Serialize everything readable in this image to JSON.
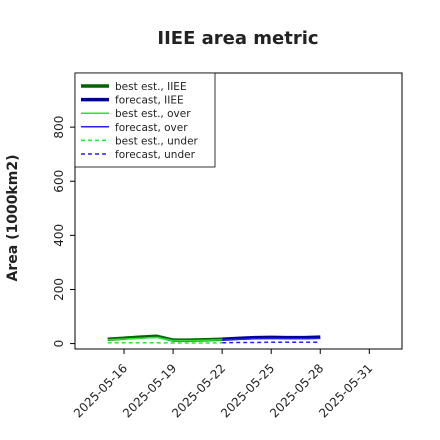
{
  "chart_data": {
    "type": "line",
    "title": "IIEE area metric",
    "xlabel": "",
    "ylabel": "Area (1000km2)",
    "ylim": [
      -20,
      1000
    ],
    "yticks": [
      0,
      200,
      400,
      600,
      800
    ],
    "xlim": [
      "2025-05-13",
      "2025-06-02"
    ],
    "xticks": [
      {
        "date": "2025-05-16",
        "label": "2025-05-16",
        "color": "#222222"
      },
      {
        "date": "2025-05-19",
        "label": "2025-05-19",
        "color": "#222222"
      },
      {
        "date": "2025-05-22",
        "label": "2025-05-22",
        "color": "#2ca02c"
      },
      {
        "date": "2025-05-25",
        "label": "2025-05-25",
        "color": "#222222"
      },
      {
        "date": "2025-05-28",
        "label": "2025-05-28",
        "color": "#222222"
      },
      {
        "date": "2025-05-31",
        "label": "2025-05-31",
        "color": "#222222"
      }
    ],
    "legend_position": "top-left",
    "grid": false,
    "series": [
      {
        "name": "best est., IIEE",
        "color": "#006400",
        "width": 3.5,
        "dash": "",
        "x": [
          "2025-05-15",
          "2025-05-16",
          "2025-05-17",
          "2025-05-18",
          "2025-05-19",
          "2025-05-20",
          "2025-05-21",
          "2025-05-22"
        ],
        "y": [
          16,
          20,
          24,
          27,
          13,
          13,
          14,
          16
        ]
      },
      {
        "name": "forecast, IIEE",
        "color": "#00008b",
        "width": 3.5,
        "dash": "",
        "x": [
          "2025-05-22",
          "2025-05-23",
          "2025-05-24",
          "2025-05-25",
          "2025-05-26",
          "2025-05-27",
          "2025-05-28"
        ],
        "y": [
          16,
          19,
          22,
          23,
          22,
          22,
          24
        ]
      },
      {
        "name": "best est., over",
        "color": "#33dd33",
        "width": 1.5,
        "dash": "",
        "x": [
          "2025-05-15",
          "2025-05-16",
          "2025-05-17",
          "2025-05-18",
          "2025-05-19",
          "2025-05-20",
          "2025-05-21",
          "2025-05-22"
        ],
        "y": [
          14,
          17,
          20,
          23,
          11,
          11,
          12,
          14
        ]
      },
      {
        "name": "forecast, over",
        "color": "#2222ee",
        "width": 1.5,
        "dash": "",
        "x": [
          "2025-05-22",
          "2025-05-23",
          "2025-05-24",
          "2025-05-25",
          "2025-05-26",
          "2025-05-27",
          "2025-05-28"
        ],
        "y": [
          14,
          16,
          18,
          19,
          18,
          18,
          19
        ]
      },
      {
        "name": "best est., under",
        "color": "#33dd33",
        "width": 1.5,
        "dash": "4,3",
        "x": [
          "2025-05-15",
          "2025-05-16",
          "2025-05-17",
          "2025-05-18",
          "2025-05-19",
          "2025-05-20",
          "2025-05-21",
          "2025-05-22"
        ],
        "y": [
          3,
          3,
          3,
          3,
          2,
          2,
          2,
          3
        ]
      },
      {
        "name": "forecast, under",
        "color": "#2222ee",
        "width": 1.5,
        "dash": "4,3",
        "x": [
          "2025-05-22",
          "2025-05-23",
          "2025-05-24",
          "2025-05-25",
          "2025-05-26",
          "2025-05-27",
          "2025-05-28"
        ],
        "y": [
          3,
          4,
          4,
          5,
          5,
          5,
          5
        ]
      }
    ]
  }
}
